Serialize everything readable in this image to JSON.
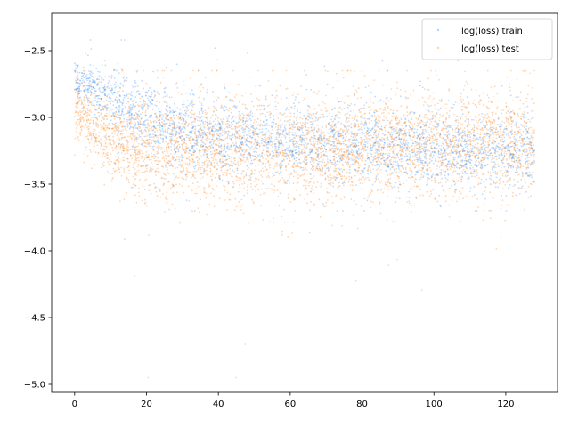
{
  "chart_data": {
    "type": "scatter",
    "title": "",
    "xlabel": "",
    "ylabel": "",
    "xlim": [
      -6.4,
      134.4
    ],
    "ylim": [
      -5.06,
      -2.22
    ],
    "x_ticks": [
      0,
      20,
      40,
      60,
      80,
      100,
      120
    ],
    "y_ticks": [
      -2.5,
      -3.0,
      -3.5,
      -4.0,
      -4.5,
      -5.0
    ],
    "x_tick_labels": [
      "0",
      "20",
      "40",
      "60",
      "80",
      "100",
      "120"
    ],
    "y_tick_labels": [
      "−2.5",
      "−3.0",
      "−3.5",
      "−4.0",
      "−4.5",
      "−5.0"
    ],
    "grid": false,
    "legend_position": "top-right",
    "series": [
      {
        "name": "log(loss) train",
        "color": "#1f77b4",
        "render_color": "#1a80ff",
        "x_range": [
          0,
          128
        ],
        "trend": [
          [
            0,
            -2.72
          ],
          [
            5,
            -2.76
          ],
          [
            10,
            -2.86
          ],
          [
            20,
            -3.0
          ],
          [
            30,
            -3.08
          ],
          [
            40,
            -3.12
          ],
          [
            60,
            -3.17
          ],
          [
            80,
            -3.2
          ],
          [
            100,
            -3.23
          ],
          [
            120,
            -3.25
          ],
          [
            128,
            -3.26
          ]
        ],
        "spread_std": [
          [
            0,
            0.06
          ],
          [
            10,
            0.12
          ],
          [
            30,
            0.14
          ],
          [
            128,
            0.14
          ]
        ],
        "y_min": -3.7,
        "y_max": -2.42
      },
      {
        "name": "log(loss) test",
        "color": "#ff7f0e",
        "x_range": [
          0,
          128
        ],
        "trend": [
          [
            0,
            -2.9
          ],
          [
            5,
            -3.05
          ],
          [
            10,
            -3.15
          ],
          [
            20,
            -3.22
          ],
          [
            40,
            -3.25
          ],
          [
            60,
            -3.25
          ],
          [
            80,
            -3.22
          ],
          [
            100,
            -3.2
          ],
          [
            128,
            -3.18
          ]
        ],
        "spread_std": [
          [
            0,
            0.12
          ],
          [
            20,
            0.2
          ],
          [
            128,
            0.2
          ]
        ],
        "y_min": -4.95,
        "y_max": -2.65
      }
    ]
  }
}
